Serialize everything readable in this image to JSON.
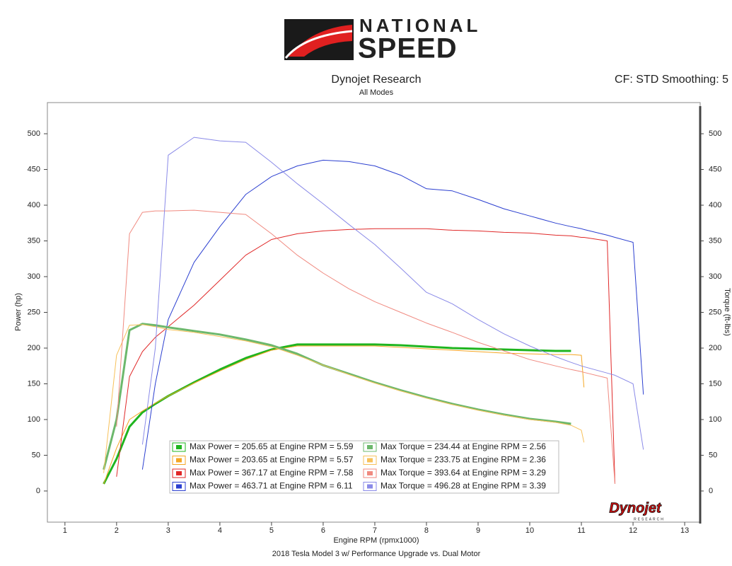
{
  "logo": {
    "line1": "NATIONAL",
    "line2": "SPEED"
  },
  "brand": {
    "name": "Dynojet",
    "sub": "RESEARCH"
  },
  "chart_data": {
    "type": "line",
    "title": "Dynojet Research",
    "subtitle": "All Modes",
    "corner_note": "CF: STD Smoothing: 5",
    "xlabel": "Engine RPM (rpmx1000)",
    "ylabel": "Power (hp)",
    "y2label": "Torque (ft-lbs)",
    "footer": "2018 Tesla Model 3 w/ Performance Upgrade vs. Dual Motor",
    "xlim": [
      0.66,
      13.3
    ],
    "xticks": [
      1,
      2,
      3,
      4,
      5,
      6,
      7,
      8,
      9,
      10,
      11,
      12,
      13
    ],
    "ylim": [
      -43.6,
      543.6
    ],
    "yticks": [
      0,
      50,
      100,
      150,
      200,
      250,
      300,
      350,
      400,
      450,
      500
    ],
    "y2lim": [
      -43.6,
      543.6
    ],
    "y2ticks": [
      0,
      50,
      100,
      150,
      200,
      250,
      300,
      350,
      400,
      450,
      500
    ],
    "grid": false,
    "x": [
      1.75,
      2,
      2.25,
      2.5,
      2.75,
      3,
      3.5,
      4,
      4.5,
      5,
      5.5,
      6,
      6.5,
      7,
      7.5,
      8,
      8.5,
      9,
      9.5,
      10,
      10.5,
      10.8,
      11,
      11.05,
      11.5,
      11.65,
      12,
      12.2
    ],
    "series": [
      {
        "name": "Max Power = 205.65 at Engine RPM = 5.59",
        "color": "#1fb51f",
        "width": 3,
        "values": [
          10,
          45,
          90,
          110,
          122,
          133,
          152,
          170,
          186,
          198,
          205,
          205,
          205,
          205,
          204,
          202,
          200,
          199,
          198,
          197,
          196,
          196,
          null,
          null,
          null,
          null,
          null,
          null
        ]
      },
      {
        "name": "Max Power = 203.65 at Engine RPM = 5.57",
        "color": "#f4a623",
        "width": 1,
        "values": [
          10,
          60,
          100,
          112,
          123,
          133,
          151,
          168,
          184,
          197,
          203,
          203,
          203,
          203,
          201,
          199,
          197,
          195,
          193,
          192,
          191,
          191,
          190,
          145,
          null,
          null,
          null,
          null
        ]
      },
      {
        "name": "Max Power = 367.17 at Engine RPM = 7.58",
        "color": "#e02828",
        "width": 1,
        "values": [
          null,
          20,
          160,
          195,
          215,
          230,
          260,
          295,
          330,
          352,
          360,
          364,
          366,
          367,
          367,
          367,
          365,
          364,
          362,
          361,
          358,
          357,
          355,
          355,
          350,
          10,
          null,
          null
        ]
      },
      {
        "name": "Max Power = 463.71 at Engine RPM = 6.11",
        "color": "#2b3fd0",
        "width": 1,
        "values": [
          null,
          null,
          null,
          30,
          150,
          240,
          320,
          370,
          415,
          440,
          455,
          463,
          461,
          455,
          442,
          423,
          420,
          408,
          395,
          385,
          375,
          370,
          367,
          366,
          358,
          355,
          348,
          135
        ]
      },
      {
        "name": "Max Torque = 234.44 at Engine RPM = 2.56",
        "color": "#6cb86c",
        "width": 3,
        "axis": "y2",
        "values": [
          30,
          100,
          225,
          234,
          232,
          229,
          224,
          219,
          212,
          204,
          192,
          176,
          164,
          152,
          141,
          131,
          122,
          114,
          107,
          101,
          97,
          94,
          null,
          null,
          null,
          null,
          null,
          null
        ]
      },
      {
        "name": "Max Torque = 233.75 at Engine RPM = 2.36",
        "color": "#f7c15a",
        "width": 1,
        "axis": "y2",
        "values": [
          25,
          190,
          232,
          233,
          230,
          226,
          222,
          216,
          210,
          202,
          190,
          176,
          163,
          151,
          140,
          130,
          121,
          113,
          106,
          100,
          96,
          92,
          85,
          68,
          null,
          null,
          null,
          null
        ]
      },
      {
        "name": "Max Torque = 393.64 at Engine RPM = 3.29",
        "color": "#f08a80",
        "width": 1,
        "axis": "y2",
        "values": [
          null,
          90,
          360,
          390,
          392,
          392,
          393,
          390,
          387,
          360,
          330,
          305,
          283,
          265,
          250,
          235,
          222,
          208,
          196,
          184,
          175,
          170,
          167,
          166,
          158,
          10,
          null,
          null
        ]
      },
      {
        "name": "Max Torque = 496.28 at Engine RPM = 3.39",
        "color": "#8a8ae8",
        "width": 1,
        "axis": "y2",
        "values": [
          null,
          null,
          null,
          65,
          200,
          470,
          495,
          490,
          488,
          460,
          430,
          402,
          373,
          345,
          312,
          278,
          262,
          240,
          220,
          203,
          188,
          180,
          175,
          174,
          165,
          162,
          150,
          58
        ]
      }
    ]
  }
}
